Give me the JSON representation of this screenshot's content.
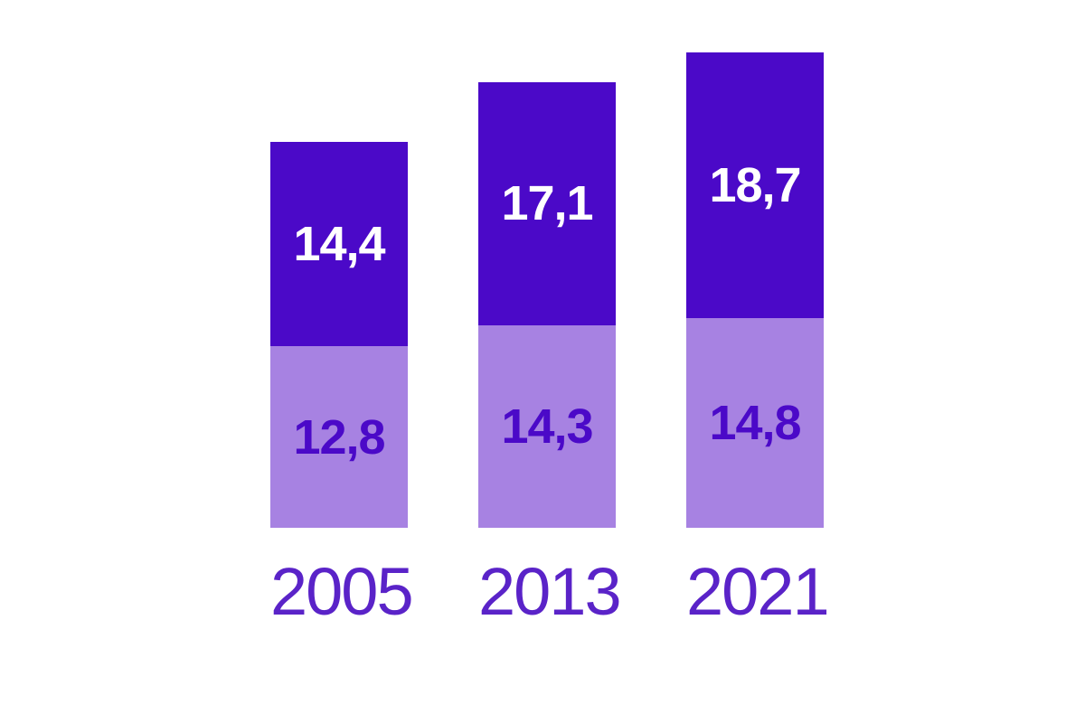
{
  "chart_data": {
    "type": "bar",
    "subtype": "stacked-column",
    "title": "",
    "xlabel": "",
    "ylabel": "",
    "categories": [
      "2005",
      "2013",
      "2021"
    ],
    "series": [
      {
        "name": "upper-segment",
        "color": "#4B09C8",
        "label_color": "#FFFFFF",
        "values": [
          14.4,
          17.1,
          18.7
        ],
        "labels": [
          "14,4",
          "17,1",
          "18,7"
        ]
      },
      {
        "name": "lower-segment",
        "color": "#A782E2",
        "label_color": "#4B09C8",
        "values": [
          12.8,
          14.3,
          14.8
        ],
        "labels": [
          "12,8",
          "14,3",
          "14,8"
        ]
      }
    ],
    "totals": [
      27.2,
      31.4,
      33.5
    ],
    "decimal_separator": ",",
    "value_labels": "inside-center",
    "legend": "none",
    "gridlines": false,
    "axes_shown": false,
    "category_label_color": "#5A23C8",
    "background_color": "#FFFFFF"
  }
}
